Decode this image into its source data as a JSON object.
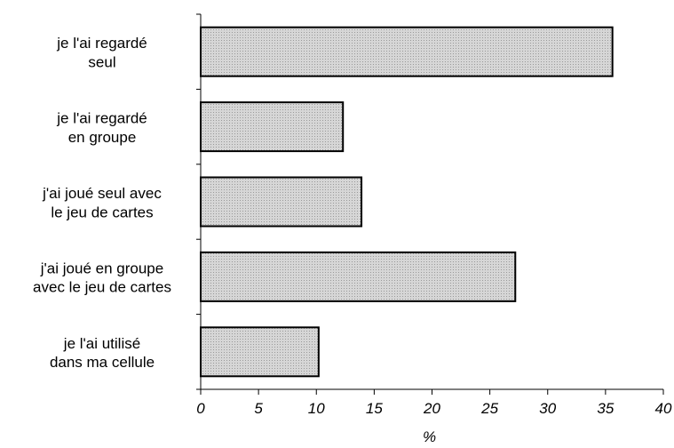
{
  "chart_data": {
    "type": "bar",
    "orientation": "horizontal",
    "categories": [
      [
        "je l'ai regardé",
        "seul"
      ],
      [
        "je l'ai regardé",
        "en groupe"
      ],
      [
        "j'ai joué seul avec",
        "le jeu de cartes"
      ],
      [
        "j'ai joué en groupe",
        "avec le jeu de cartes"
      ],
      [
        "je l'ai utilisé",
        "dans ma cellule"
      ]
    ],
    "values": [
      35.6,
      12.3,
      13.9,
      27.2,
      10.2
    ],
    "xlabel": "%",
    "ylabel": "",
    "title": "",
    "xlim": [
      0,
      40
    ],
    "xticks": [
      "0",
      "5",
      "10",
      "15",
      "20",
      "25",
      "30",
      "35",
      "40"
    ],
    "grid": false,
    "legend": "none",
    "colors": {
      "bar_fill": "#d0d0d0",
      "bar_stroke": "#000000",
      "axis": "#000000"
    }
  }
}
